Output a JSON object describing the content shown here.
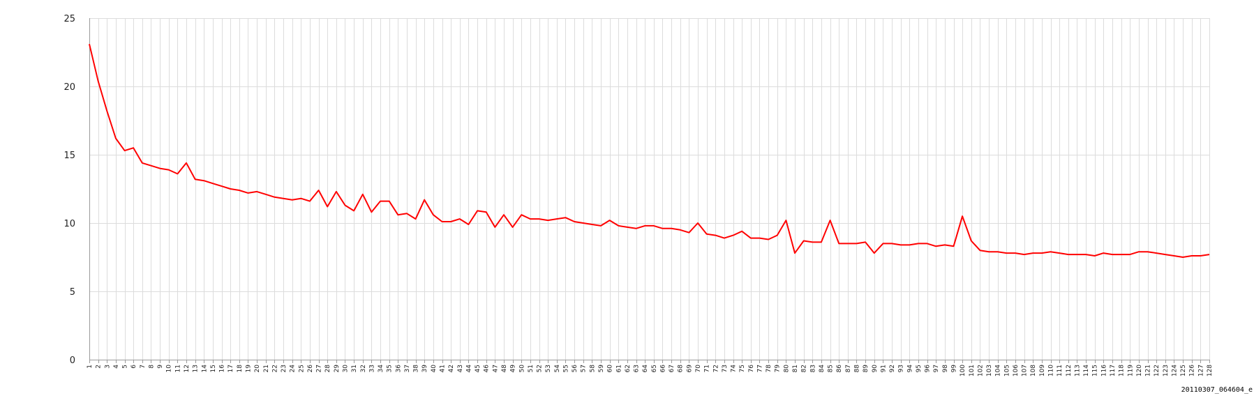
{
  "caption": "20110307_064604_e",
  "colors": {
    "series": "#ff0000",
    "grid": "#dcdcdc",
    "axis": "#9a9a9a",
    "text": "#222222"
  },
  "chart_data": {
    "type": "line",
    "title": "",
    "xlabel": "",
    "ylabel": "",
    "grid": true,
    "legend": "none",
    "ylim": [
      0,
      25
    ],
    "yticks": [
      0,
      5,
      10,
      15,
      20,
      25
    ],
    "x": [
      1,
      2,
      3,
      4,
      5,
      6,
      7,
      8,
      9,
      10,
      11,
      12,
      13,
      14,
      15,
      16,
      17,
      18,
      19,
      20,
      21,
      22,
      23,
      24,
      25,
      26,
      27,
      28,
      29,
      30,
      31,
      32,
      33,
      34,
      35,
      36,
      37,
      38,
      39,
      40,
      41,
      42,
      43,
      44,
      45,
      46,
      47,
      48,
      49,
      50,
      51,
      52,
      53,
      54,
      55,
      56,
      57,
      58,
      59,
      60,
      61,
      62,
      63,
      64,
      65,
      66,
      67,
      68,
      69,
      70,
      71,
      72,
      73,
      74,
      75,
      76,
      77,
      78,
      79,
      80,
      81,
      82,
      83,
      84,
      85,
      86,
      87,
      88,
      89,
      90,
      91,
      92,
      93,
      94,
      95,
      96,
      97,
      98,
      99,
      100,
      101,
      102,
      103,
      104,
      105,
      106,
      107,
      108,
      109,
      110,
      111,
      112,
      113,
      114,
      115,
      116,
      117,
      118,
      119,
      120,
      121,
      122,
      123,
      124,
      125,
      126,
      127,
      128
    ],
    "series": [
      {
        "values": [
          23.1,
          20.4,
          18.2,
          16.2,
          15.3,
          15.5,
          14.4,
          14.2,
          14.0,
          13.9,
          13.6,
          14.4,
          13.2,
          13.1,
          12.9,
          12.7,
          12.5,
          12.4,
          12.2,
          12.3,
          12.1,
          11.9,
          11.8,
          11.7,
          11.8,
          11.6,
          12.4,
          11.2,
          12.3,
          11.3,
          10.9,
          12.1,
          10.8,
          11.6,
          11.6,
          10.6,
          10.7,
          10.3,
          11.7,
          10.6,
          10.1,
          10.1,
          10.3,
          9.9,
          10.9,
          10.8,
          9.7,
          10.6,
          9.7,
          10.6,
          10.3,
          10.3,
          10.2,
          10.3,
          10.4,
          10.1,
          10.0,
          9.9,
          9.8,
          10.2,
          9.8,
          9.7,
          9.6,
          9.8,
          9.8,
          9.6,
          9.6,
          9.5,
          9.3,
          10.0,
          9.2,
          9.1,
          8.9,
          9.1,
          9.4,
          8.9,
          8.9,
          8.8,
          9.1,
          10.2,
          7.8,
          8.7,
          8.6,
          8.6,
          10.2,
          8.5,
          8.5,
          8.5,
          8.6,
          7.8,
          8.5,
          8.5,
          8.4,
          8.4,
          8.5,
          8.5,
          8.3,
          8.4,
          8.3,
          10.5,
          8.7,
          8.0,
          7.9,
          7.9,
          7.8,
          7.8,
          7.7,
          7.8,
          7.8,
          7.9,
          7.8,
          7.7,
          7.7,
          7.7,
          7.6,
          7.8,
          7.7,
          7.7,
          7.7,
          7.9,
          7.9,
          7.8,
          7.7,
          7.6,
          7.5,
          7.6,
          7.6,
          7.7
        ]
      }
    ]
  }
}
